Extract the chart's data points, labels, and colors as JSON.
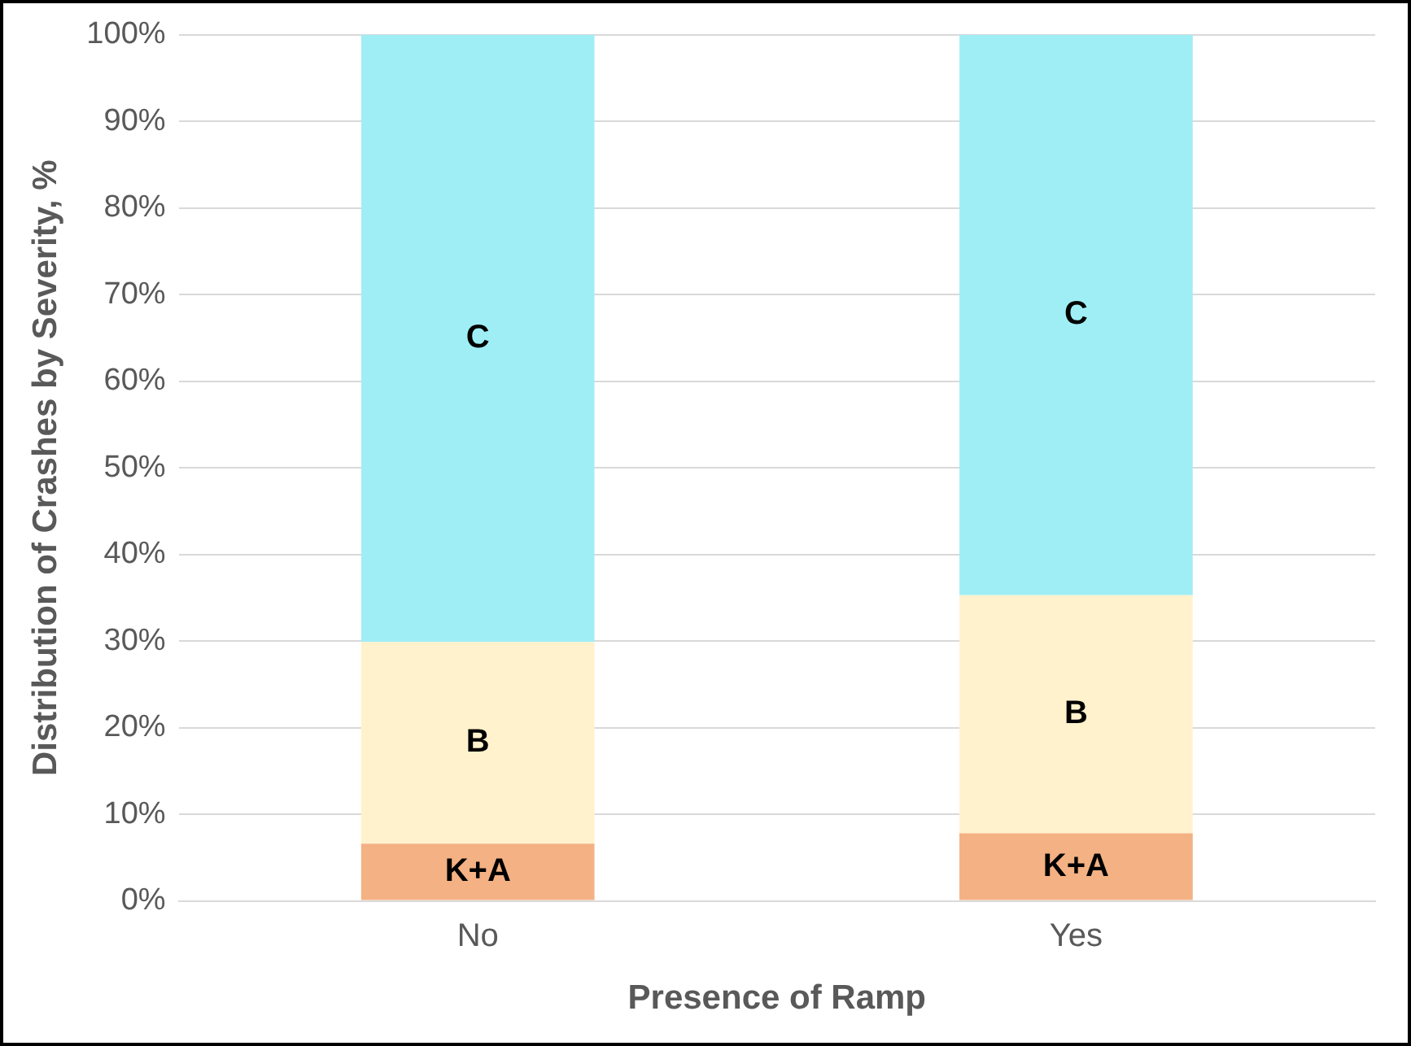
{
  "chart_data": {
    "type": "bar",
    "stacked": true,
    "xlabel": "Presence of Ramp",
    "ylabel": "Distribution of Crashes by Severity, %",
    "categories": [
      "No",
      "Yes"
    ],
    "series": [
      {
        "name": "K+A",
        "color": "#f4b183",
        "values": [
          6.6,
          7.8
        ]
      },
      {
        "name": "B",
        "color": "#fff2cc",
        "values": [
          23.3,
          27.5
        ]
      },
      {
        "name": "C",
        "color": "#a0eef5",
        "values": [
          70.1,
          64.7
        ]
      }
    ],
    "ylim": [
      0,
      100
    ],
    "yticks": [
      {
        "value": 0,
        "label": "0%"
      },
      {
        "value": 10,
        "label": "10%"
      },
      {
        "value": 20,
        "label": "20%"
      },
      {
        "value": 30,
        "label": "30%"
      },
      {
        "value": 40,
        "label": "40%"
      },
      {
        "value": 50,
        "label": "50%"
      },
      {
        "value": 60,
        "label": "60%"
      },
      {
        "value": 70,
        "label": "70%"
      },
      {
        "value": 80,
        "label": "80%"
      },
      {
        "value": 90,
        "label": "90%"
      },
      {
        "value": 100,
        "label": "100%"
      }
    ],
    "grid": "y",
    "legend": false
  }
}
